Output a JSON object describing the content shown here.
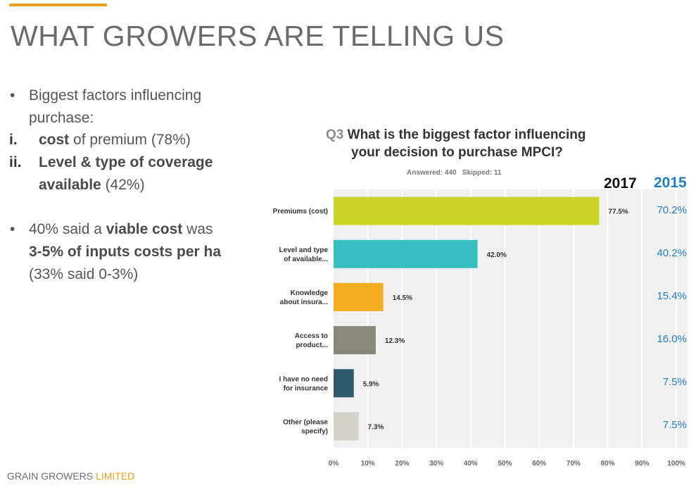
{
  "slide": {
    "title": "WHAT GROWERS ARE TELLING US",
    "footer_brand": "GRAIN GROWERS",
    "footer_suffix": "LIMITED"
  },
  "bullets": {
    "b1_line1": "Biggest factors influencing",
    "b1_line2": "purchase:",
    "i_num": "i.",
    "i_bold": "cost",
    "i_rest": " of premium (78%)",
    "ii_num": "ii.",
    "ii_bold_line1": "Level & type of coverage",
    "ii_bold_line2": "available",
    "ii_rest": " (42%)",
    "b2_pre": "40% said a ",
    "b2_bold": "viable cost",
    "b2_post": " was",
    "b2_line2": "3-5% of inputs costs per ha",
    "b2_line3": "(33% said 0-3%)"
  },
  "chart_data": {
    "type": "bar",
    "orientation": "horizontal",
    "question_no": "Q3",
    "title_line1": "What is the biggest factor influencing",
    "title_line2": "your decision to purchase MPCI?",
    "stats": "Answered: 440   Skipped: 11",
    "categories": [
      [
        "Premiums (cost)"
      ],
      [
        "Level and type",
        "of available..."
      ],
      [
        "Knowledge",
        "about insura..."
      ],
      [
        "Access to",
        "product..."
      ],
      [
        "I have no need",
        "for insurance"
      ],
      [
        "Other (please",
        "specify)"
      ]
    ],
    "series": [
      {
        "name": "2017",
        "values": [
          77.5,
          42.0,
          14.5,
          12.3,
          5.9,
          7.3
        ],
        "labels": [
          "77.5%",
          "42.0%",
          "14.5%",
          "12.3%",
          "5.9%",
          "7.3%"
        ]
      },
      {
        "name": "2015",
        "values": [
          70.2,
          40.2,
          15.4,
          16.0,
          7.5,
          7.5
        ],
        "labels": [
          "70.2%",
          "40.2%",
          "15.4%",
          "16.0%",
          "7.5%",
          "7.5%"
        ]
      }
    ],
    "bar_colors": [
      "#ccd526",
      "#36bfc1",
      "#f4ad1f",
      "#87887a",
      "#2d5b6a",
      "#d2d2c6"
    ],
    "year_2017_color": "#111111",
    "year_2015_color": "#1f7fbf",
    "xticks": [
      "0%",
      "10%",
      "20%",
      "30%",
      "40%",
      "50%",
      "60%",
      "70%",
      "80%",
      "90%",
      "100%"
    ],
    "xlim": [
      0,
      100
    ],
    "grid": true
  }
}
